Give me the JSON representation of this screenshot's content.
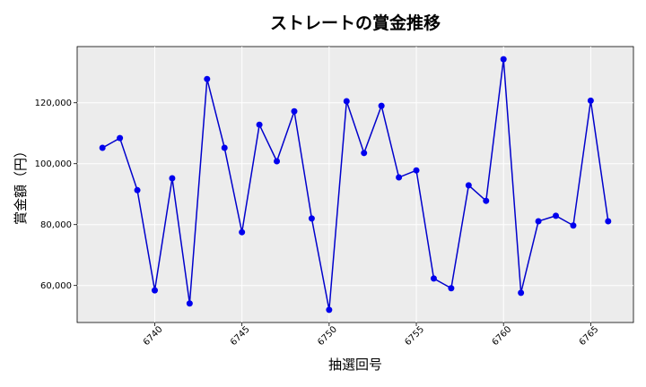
{
  "chart_data": {
    "type": "line",
    "title": "ストレートの賞金推移",
    "xlabel": "抽選回号",
    "ylabel": "賞金額（円）",
    "x": [
      6737,
      6738,
      6739,
      6740,
      6741,
      6742,
      6743,
      6744,
      6745,
      6746,
      6747,
      6748,
      6749,
      6750,
      6751,
      6752,
      6753,
      6754,
      6755,
      6756,
      6757,
      6758,
      6759,
      6760,
      6761,
      6762,
      6763,
      6764,
      6765,
      6766
    ],
    "series": [
      {
        "values": [
          105200,
          108400,
          91300,
          58400,
          95200,
          54100,
          127800,
          105200,
          77500,
          112800,
          100800,
          117200,
          82000,
          52000,
          120500,
          103500,
          119000,
          95500,
          97800,
          62300,
          59100,
          92900,
          87800,
          134300,
          57600,
          81100,
          82900,
          79700,
          120700,
          81100
        ]
      }
    ],
    "xticks": [
      "6740",
      "6745",
      "6750",
      "6755",
      "6760",
      "6765"
    ],
    "yticks": [
      "60,000",
      "80,000",
      "100,000",
      "120,000"
    ],
    "xlim": [
      6735.55,
      6767.45
    ],
    "ylim": [
      47850,
      138450
    ],
    "grid": true,
    "line_color": "#0000cc",
    "marker_color": "#0000ee",
    "background": "#ececec"
  }
}
